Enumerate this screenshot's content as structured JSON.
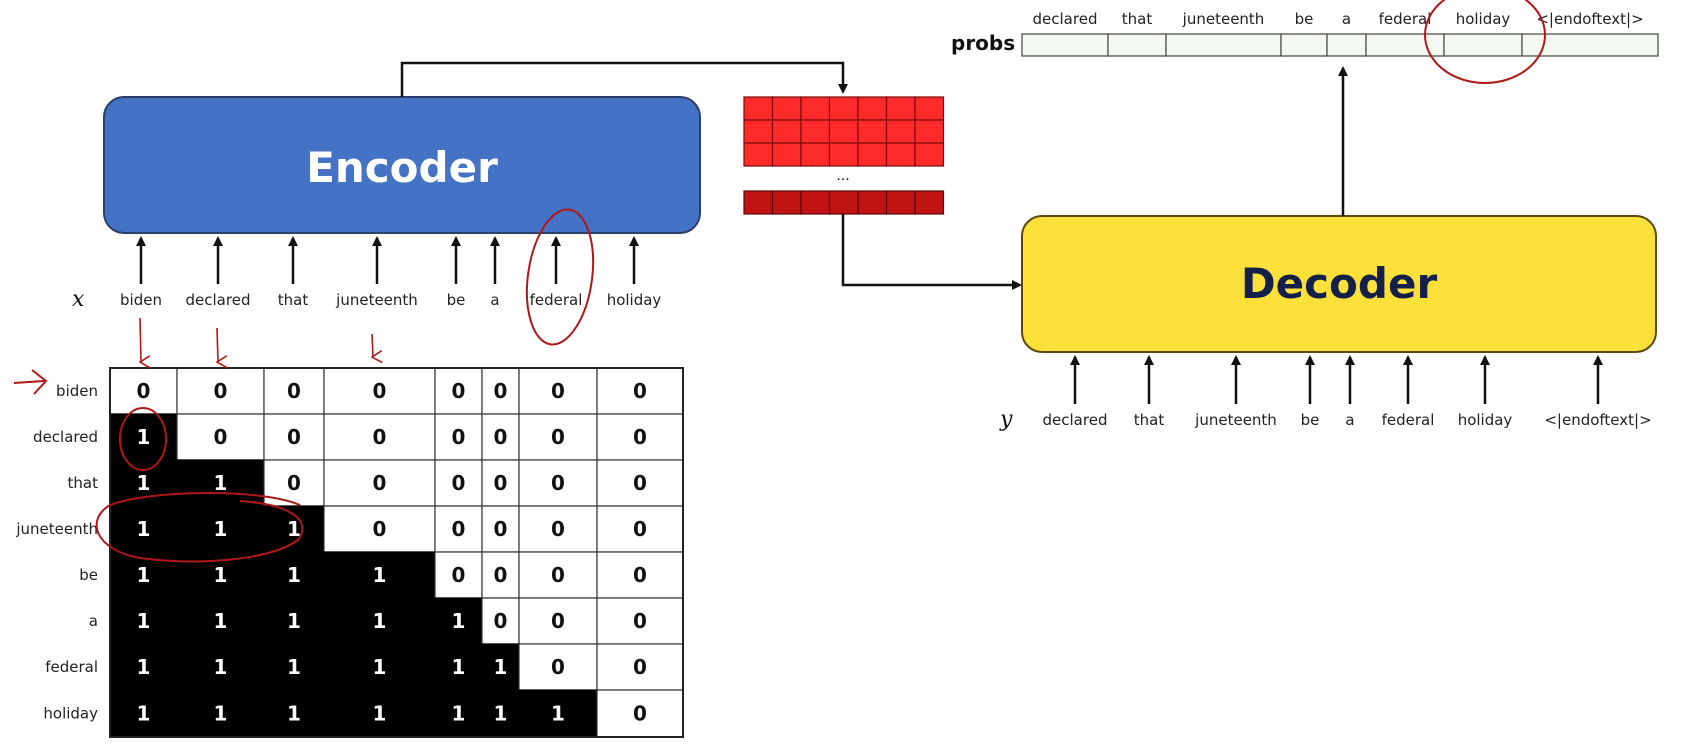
{
  "encoder": {
    "label": "Encoder",
    "color": "#4472c4"
  },
  "decoder": {
    "label": "Decoder",
    "color": "#fde03a",
    "text_color": "#14204a"
  },
  "probs": {
    "label": "probs",
    "tokens": [
      "declared",
      "that",
      "juneteenth",
      "be",
      "a",
      "federal",
      "holiday",
      "<|endoftext|>"
    ]
  },
  "x_input": {
    "symbol": "x",
    "tokens": [
      "biden",
      "declared",
      "that",
      "juneteenth",
      "be",
      "a",
      "federal",
      "holiday"
    ]
  },
  "y_input": {
    "symbol": "y",
    "tokens": [
      "declared",
      "that",
      "juneteenth",
      "be",
      "a",
      "federal",
      "holiday",
      "<|endoftext|>"
    ]
  },
  "embedding": {
    "ellipsis": "...",
    "color_top": "#ff2a2a",
    "color_bottom": "#c01414"
  },
  "mask": {
    "row_labels": [
      "biden",
      "declared",
      "that",
      "juneteenth",
      "be",
      "a",
      "federal",
      "holiday"
    ],
    "values": [
      [
        0,
        0,
        0,
        0,
        0,
        0,
        0,
        0
      ],
      [
        1,
        0,
        0,
        0,
        0,
        0,
        0,
        0
      ],
      [
        1,
        1,
        0,
        0,
        0,
        0,
        0,
        0
      ],
      [
        1,
        1,
        1,
        0,
        0,
        0,
        0,
        0
      ],
      [
        1,
        1,
        1,
        1,
        0,
        0,
        0,
        0
      ],
      [
        1,
        1,
        1,
        1,
        1,
        0,
        0,
        0
      ],
      [
        1,
        1,
        1,
        1,
        1,
        1,
        0,
        0
      ],
      [
        1,
        1,
        1,
        1,
        1,
        1,
        1,
        0
      ]
    ]
  },
  "annotation_color": "#b01818"
}
